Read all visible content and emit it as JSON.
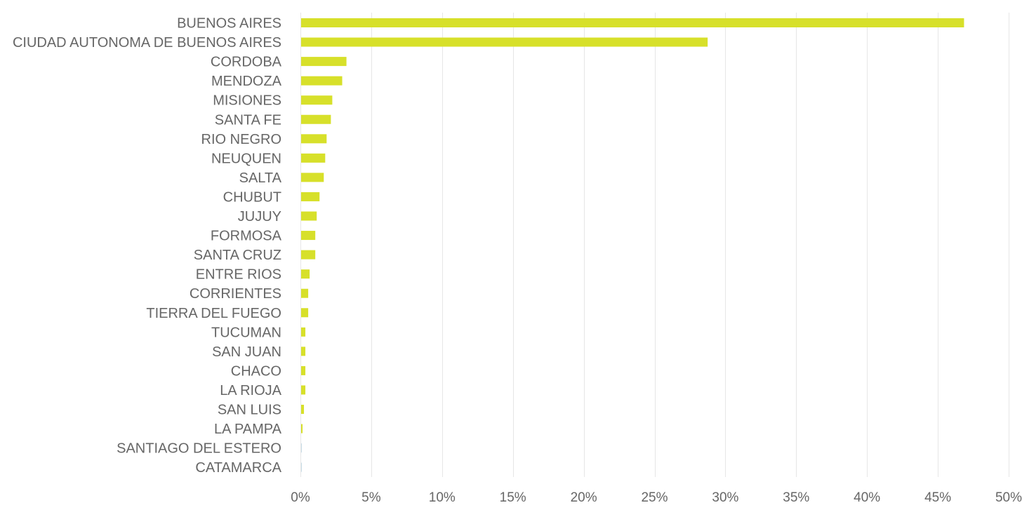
{
  "chart_data": {
    "type": "bar",
    "orientation": "horizontal",
    "title": "",
    "xlabel": "",
    "ylabel": "",
    "categories": [
      "BUENOS AIRES",
      "CIUDAD AUTONOMA DE BUENOS AIRES",
      "CORDOBA",
      "MENDOZA",
      "MISIONES",
      "SANTA FE",
      "RIO NEGRO",
      "NEUQUEN",
      "SALTA",
      "CHUBUT",
      "JUJUY",
      "FORMOSA",
      "SANTA CRUZ",
      "ENTRE RIOS",
      "CORRIENTES",
      "TIERRA DEL FUEGO",
      "TUCUMAN",
      "SAN JUAN",
      "CHACO",
      "LA RIOJA",
      "SAN LUIS",
      "LA PAMPA",
      "SANTIAGO DEL ESTERO",
      "CATAMARCA"
    ],
    "values": [
      46.8,
      28.7,
      3.2,
      2.9,
      2.2,
      2.1,
      1.8,
      1.7,
      1.6,
      1.3,
      1.1,
      1.0,
      1.0,
      0.6,
      0.5,
      0.5,
      0.3,
      0.3,
      0.3,
      0.3,
      0.2,
      0.1,
      0.05,
      0.05
    ],
    "xlim": [
      0,
      50
    ],
    "ticks": [
      0,
      5,
      10,
      15,
      20,
      25,
      30,
      35,
      40,
      45,
      50
    ],
    "tick_labels": [
      "0%",
      "5%",
      "10%",
      "15%",
      "20%",
      "25%",
      "30%",
      "35%",
      "40%",
      "45%",
      "50%"
    ],
    "grid": true,
    "bar_color": "#d7e02a",
    "tiny_bar_color": "#c9dde8",
    "gridline_color": "#e6e6e6",
    "text_color": "#666666"
  }
}
